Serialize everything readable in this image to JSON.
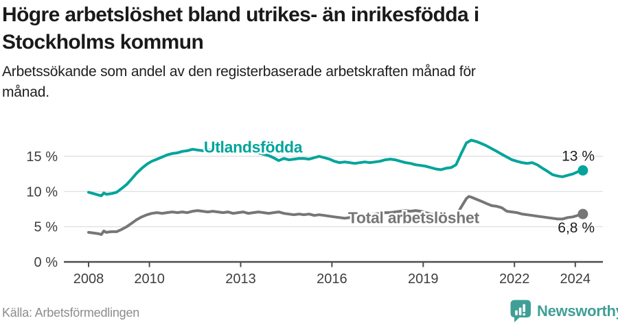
{
  "header": {
    "title_line1": "Högre arbetslöshet bland utrikes- än inrikesfödda i",
    "title_line2": "Stockholms kommun",
    "subtitle_line1": "Arbetssökande som andel av den registerbaserade arbetskraften månad för",
    "subtitle_line2": "månad."
  },
  "footer": {
    "source": "Källa: Arbetsförmedlingen",
    "brand": "Newsworthy"
  },
  "colors": {
    "teal": "#00a49b",
    "gray": "#767676",
    "logo_teal": "#3f9f96",
    "axis": "#4d4d4d",
    "grid": "#dcdcdc",
    "tick_text": "#3d3d3d",
    "value_text": "#1a1a1a"
  },
  "chart_data": {
    "type": "line",
    "title": "Högre arbetslöshet bland utrikes- än inrikesfödda i Stockholms kommun",
    "subtitle": "Arbetssökande som andel av den registerbaserade arbetskraften månad för månad.",
    "x_ticks": [
      2008,
      2010,
      2013,
      2016,
      2019,
      2022,
      2024
    ],
    "x_tick_labels": [
      "2008",
      "2010",
      "2013",
      "2016",
      "2019",
      "2022",
      "2024"
    ],
    "y_ticks": [
      0,
      5,
      10,
      15
    ],
    "y_tick_labels": [
      "0 %",
      "5 %",
      "10 %",
      "15 %"
    ],
    "xlim": [
      2007.2,
      2024.9
    ],
    "ylim": [
      0,
      18.3
    ],
    "grid": "horizontal",
    "legend_position": "inline-labels",
    "series": [
      {
        "name": "Utlandsfödda",
        "color": "#00a49b",
        "end_label": "13 %",
        "label_pos": {
          "year": 2011.79,
          "value": 16.3
        },
        "points": [
          [
            2008.0,
            9.9
          ],
          [
            2008.17,
            9.7
          ],
          [
            2008.33,
            9.5
          ],
          [
            2008.42,
            9.4
          ],
          [
            2008.5,
            9.8
          ],
          [
            2008.58,
            9.6
          ],
          [
            2008.75,
            9.7
          ],
          [
            2008.92,
            9.9
          ],
          [
            2009.08,
            10.4
          ],
          [
            2009.25,
            11.0
          ],
          [
            2009.42,
            11.8
          ],
          [
            2009.58,
            12.6
          ],
          [
            2009.75,
            13.3
          ],
          [
            2009.92,
            13.9
          ],
          [
            2010.08,
            14.3
          ],
          [
            2010.25,
            14.6
          ],
          [
            2010.42,
            14.9
          ],
          [
            2010.58,
            15.2
          ],
          [
            2010.75,
            15.4
          ],
          [
            2010.92,
            15.5
          ],
          [
            2011.08,
            15.7
          ],
          [
            2011.25,
            15.8
          ],
          [
            2011.42,
            16.0
          ],
          [
            2011.58,
            15.9
          ],
          [
            2011.75,
            15.8
          ],
          [
            2011.92,
            15.9
          ],
          [
            2012.08,
            16.0
          ],
          [
            2012.25,
            16.1
          ],
          [
            2012.42,
            16.0
          ],
          [
            2012.58,
            15.8
          ],
          [
            2012.75,
            15.7
          ],
          [
            2012.92,
            15.8
          ],
          [
            2013.08,
            15.9
          ],
          [
            2013.25,
            15.8
          ],
          [
            2013.42,
            15.6
          ],
          [
            2013.58,
            15.5
          ],
          [
            2013.75,
            15.3
          ],
          [
            2013.92,
            15.1
          ],
          [
            2014.08,
            14.8
          ],
          [
            2014.25,
            14.4
          ],
          [
            2014.42,
            14.7
          ],
          [
            2014.58,
            14.5
          ],
          [
            2014.75,
            14.6
          ],
          [
            2014.92,
            14.7
          ],
          [
            2015.08,
            14.7
          ],
          [
            2015.25,
            14.6
          ],
          [
            2015.42,
            14.8
          ],
          [
            2015.58,
            15.0
          ],
          [
            2015.75,
            14.8
          ],
          [
            2015.92,
            14.6
          ],
          [
            2016.08,
            14.3
          ],
          [
            2016.25,
            14.1
          ],
          [
            2016.42,
            14.2
          ],
          [
            2016.58,
            14.1
          ],
          [
            2016.75,
            14.0
          ],
          [
            2016.92,
            14.1
          ],
          [
            2017.08,
            14.2
          ],
          [
            2017.25,
            14.1
          ],
          [
            2017.42,
            14.2
          ],
          [
            2017.58,
            14.3
          ],
          [
            2017.75,
            14.5
          ],
          [
            2017.92,
            14.6
          ],
          [
            2018.08,
            14.5
          ],
          [
            2018.25,
            14.3
          ],
          [
            2018.42,
            14.1
          ],
          [
            2018.58,
            14.0
          ],
          [
            2018.75,
            13.8
          ],
          [
            2018.92,
            13.7
          ],
          [
            2019.08,
            13.6
          ],
          [
            2019.25,
            13.4
          ],
          [
            2019.42,
            13.2
          ],
          [
            2019.58,
            13.1
          ],
          [
            2019.75,
            13.3
          ],
          [
            2019.92,
            13.4
          ],
          [
            2020.08,
            13.8
          ],
          [
            2020.25,
            15.4
          ],
          [
            2020.42,
            16.9
          ],
          [
            2020.58,
            17.3
          ],
          [
            2020.75,
            17.1
          ],
          [
            2020.92,
            16.8
          ],
          [
            2021.08,
            16.5
          ],
          [
            2021.25,
            16.1
          ],
          [
            2021.42,
            15.7
          ],
          [
            2021.58,
            15.3
          ],
          [
            2021.75,
            14.9
          ],
          [
            2021.92,
            14.5
          ],
          [
            2022.08,
            14.3
          ],
          [
            2022.25,
            14.1
          ],
          [
            2022.42,
            14.0
          ],
          [
            2022.58,
            14.1
          ],
          [
            2022.75,
            13.8
          ],
          [
            2022.92,
            13.3
          ],
          [
            2023.08,
            12.9
          ],
          [
            2023.25,
            12.4
          ],
          [
            2023.42,
            12.2
          ],
          [
            2023.58,
            12.1
          ],
          [
            2023.75,
            12.3
          ],
          [
            2023.92,
            12.5
          ],
          [
            2024.08,
            12.8
          ],
          [
            2024.25,
            13.0
          ]
        ]
      },
      {
        "name": "Total arbetslöshet",
        "color": "#767676",
        "end_label": "6,8 %",
        "label_pos": {
          "year": 2016.53,
          "value": 6.3
        },
        "points": [
          [
            2008.0,
            4.2
          ],
          [
            2008.17,
            4.1
          ],
          [
            2008.33,
            4.0
          ],
          [
            2008.42,
            3.9
          ],
          [
            2008.5,
            4.4
          ],
          [
            2008.58,
            4.2
          ],
          [
            2008.75,
            4.3
          ],
          [
            2008.92,
            4.3
          ],
          [
            2009.08,
            4.6
          ],
          [
            2009.25,
            5.0
          ],
          [
            2009.42,
            5.5
          ],
          [
            2009.58,
            6.0
          ],
          [
            2009.75,
            6.4
          ],
          [
            2009.92,
            6.7
          ],
          [
            2010.08,
            6.9
          ],
          [
            2010.25,
            7.0
          ],
          [
            2010.42,
            6.9
          ],
          [
            2010.58,
            7.0
          ],
          [
            2010.75,
            7.1
          ],
          [
            2010.92,
            7.0
          ],
          [
            2011.08,
            7.1
          ],
          [
            2011.25,
            7.0
          ],
          [
            2011.42,
            7.2
          ],
          [
            2011.58,
            7.3
          ],
          [
            2011.75,
            7.2
          ],
          [
            2011.92,
            7.1
          ],
          [
            2012.08,
            7.2
          ],
          [
            2012.25,
            7.1
          ],
          [
            2012.42,
            7.0
          ],
          [
            2012.58,
            7.1
          ],
          [
            2012.75,
            6.9
          ],
          [
            2012.92,
            7.0
          ],
          [
            2013.08,
            7.1
          ],
          [
            2013.25,
            6.9
          ],
          [
            2013.42,
            7.0
          ],
          [
            2013.58,
            7.1
          ],
          [
            2013.75,
            7.0
          ],
          [
            2013.92,
            6.9
          ],
          [
            2014.08,
            7.0
          ],
          [
            2014.25,
            7.1
          ],
          [
            2014.42,
            6.9
          ],
          [
            2014.58,
            6.8
          ],
          [
            2014.75,
            6.7
          ],
          [
            2014.92,
            6.8
          ],
          [
            2015.08,
            6.7
          ],
          [
            2015.25,
            6.8
          ],
          [
            2015.42,
            6.6
          ],
          [
            2015.58,
            6.7
          ],
          [
            2015.75,
            6.6
          ],
          [
            2015.92,
            6.5
          ],
          [
            2016.08,
            6.4
          ],
          [
            2016.25,
            6.3
          ],
          [
            2016.42,
            6.2
          ],
          [
            2016.58,
            6.3
          ],
          [
            2016.75,
            6.4
          ],
          [
            2016.92,
            6.5
          ],
          [
            2017.08,
            6.6
          ],
          [
            2017.25,
            6.7
          ],
          [
            2017.42,
            6.8
          ],
          [
            2017.58,
            6.9
          ],
          [
            2017.75,
            7.0
          ],
          [
            2017.92,
            7.0
          ],
          [
            2018.08,
            7.1
          ],
          [
            2018.25,
            7.2
          ],
          [
            2018.42,
            7.3
          ],
          [
            2018.58,
            7.2
          ],
          [
            2018.75,
            7.3
          ],
          [
            2018.92,
            7.2
          ],
          [
            2019.08,
            7.0
          ],
          [
            2019.25,
            6.8
          ],
          [
            2019.42,
            6.6
          ],
          [
            2019.58,
            6.5
          ],
          [
            2019.75,
            6.4
          ],
          [
            2019.92,
            6.3
          ],
          [
            2020.08,
            6.5
          ],
          [
            2020.25,
            7.8
          ],
          [
            2020.42,
            9.0
          ],
          [
            2020.5,
            9.3
          ],
          [
            2020.58,
            9.2
          ],
          [
            2020.75,
            8.9
          ],
          [
            2020.92,
            8.6
          ],
          [
            2021.08,
            8.3
          ],
          [
            2021.25,
            8.0
          ],
          [
            2021.42,
            7.9
          ],
          [
            2021.58,
            7.7
          ],
          [
            2021.75,
            7.2
          ],
          [
            2021.92,
            7.1
          ],
          [
            2022.08,
            7.0
          ],
          [
            2022.25,
            6.8
          ],
          [
            2022.42,
            6.7
          ],
          [
            2022.58,
            6.6
          ],
          [
            2022.75,
            6.5
          ],
          [
            2022.92,
            6.4
          ],
          [
            2023.08,
            6.3
          ],
          [
            2023.25,
            6.2
          ],
          [
            2023.42,
            6.1
          ],
          [
            2023.58,
            6.1
          ],
          [
            2023.75,
            6.3
          ],
          [
            2023.92,
            6.4
          ],
          [
            2024.08,
            6.6
          ],
          [
            2024.25,
            6.8
          ]
        ]
      }
    ]
  }
}
